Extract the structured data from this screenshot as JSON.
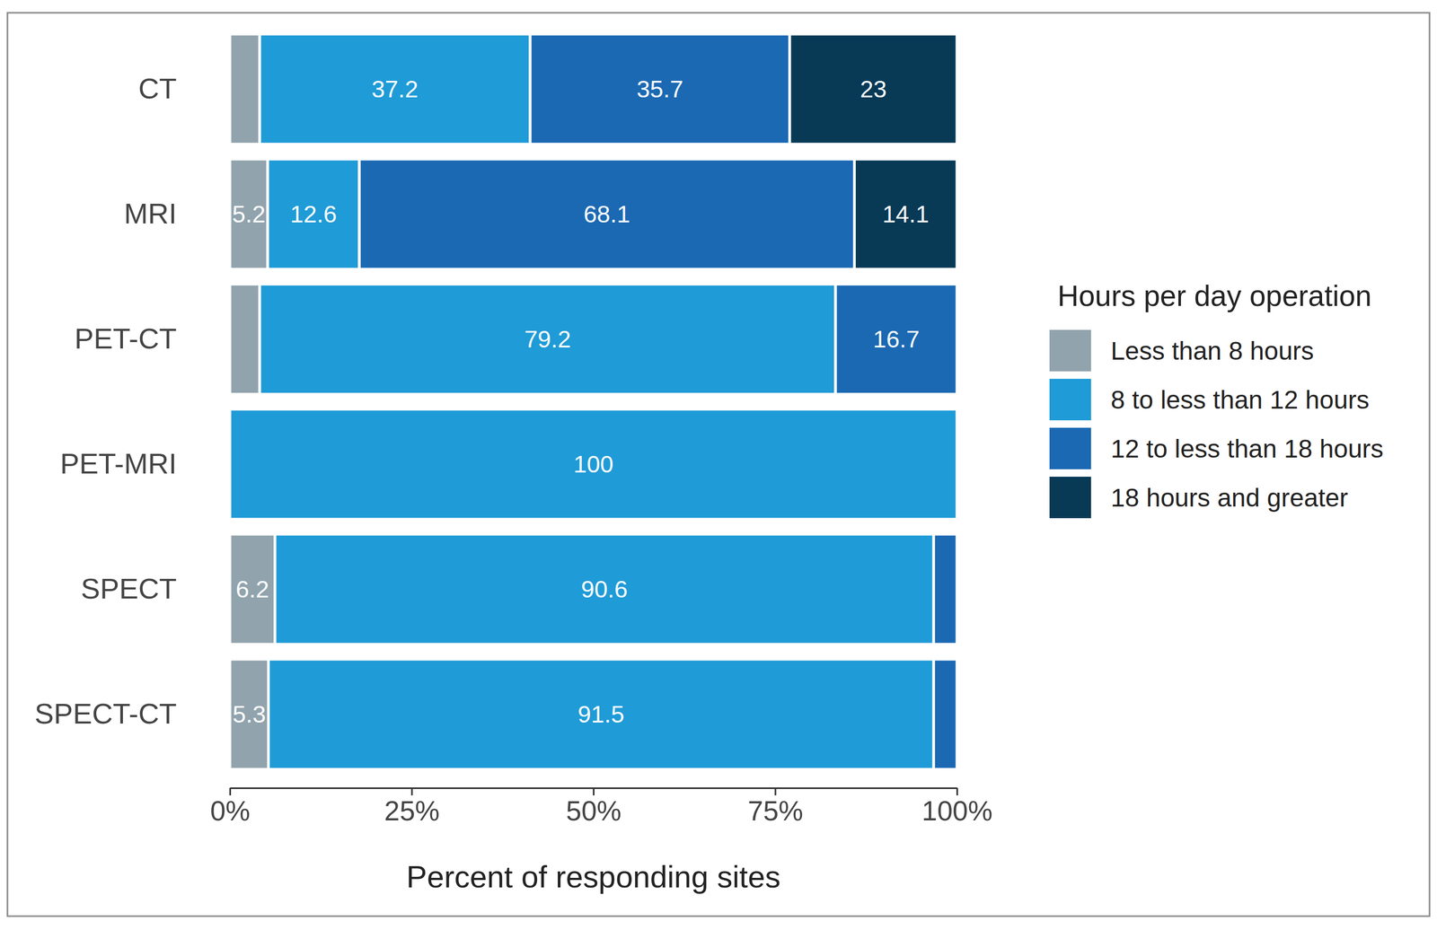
{
  "chart_data": {
    "type": "bar",
    "orientation": "horizontal",
    "stacked": true,
    "data_labels": true,
    "grid": false,
    "legend": "right",
    "legend_title": "Hours per day operation",
    "x_label": "Percent of responding sites",
    "categories": [
      "CT",
      "MRI",
      "PET-CT",
      "PET-MRI",
      "SPECT",
      "SPECT-CT"
    ],
    "xlim": [
      0,
      100
    ],
    "xticks": [
      {
        "value": 0,
        "label": "0%"
      },
      {
        "value": 25,
        "label": "25%"
      },
      {
        "value": 50,
        "label": "50%"
      },
      {
        "value": 75,
        "label": "75%"
      },
      {
        "value": 100,
        "label": "100%"
      }
    ],
    "series": [
      {
        "name": "Less than 8 hours",
        "color": "#91a3ad",
        "values": [
          4.1,
          5.2,
          4.1,
          0,
          6.2,
          5.3
        ],
        "value_labels": [
          null,
          "5.2",
          null,
          null,
          "6.2",
          "5.3"
        ]
      },
      {
        "name": "8 to less than 12 hours",
        "color": "#1f9bd7",
        "values": [
          37.2,
          12.6,
          79.2,
          100,
          90.6,
          91.5
        ],
        "value_labels": [
          "37.2",
          "12.6",
          "79.2",
          "100",
          "90.6",
          "91.5"
        ]
      },
      {
        "name": "12 to less than 18 hours",
        "color": "#1b69b3",
        "values": [
          35.7,
          68.1,
          16.7,
          0,
          3.2,
          3.2
        ],
        "value_labels": [
          "35.7",
          "68.1",
          "16.7",
          null,
          null,
          null
        ]
      },
      {
        "name": "18 hours and greater",
        "color": "#083a56",
        "values": [
          23,
          14.1,
          0,
          0,
          0,
          0
        ],
        "value_labels": [
          "23",
          "14.1",
          null,
          null,
          null,
          null
        ]
      }
    ]
  }
}
